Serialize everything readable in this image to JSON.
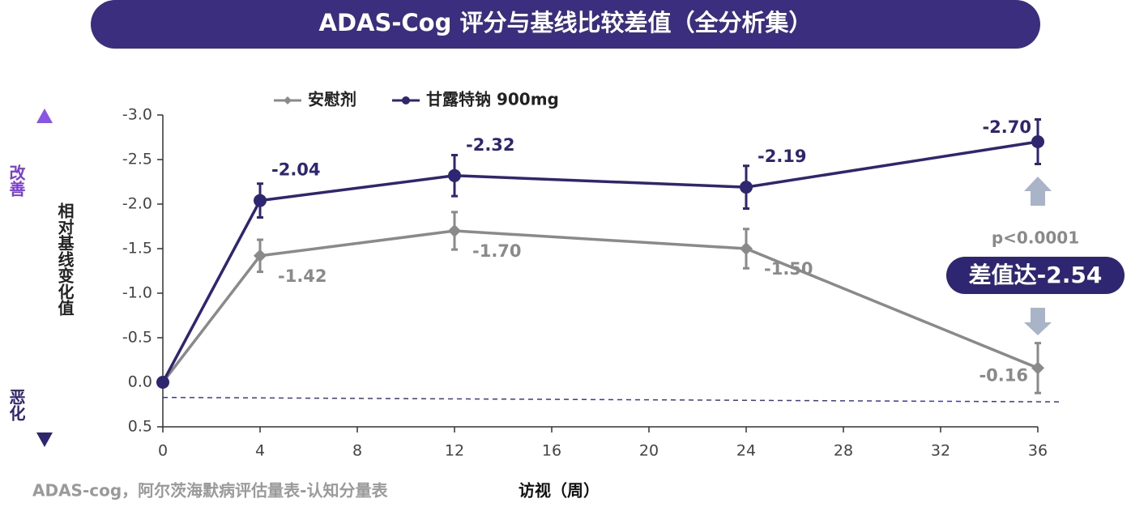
{
  "header": {
    "title": "ADAS-Cog 评分与基线比较差值（全分析集）"
  },
  "chart_data": {
    "type": "line",
    "x": [
      0,
      4,
      12,
      24,
      36
    ],
    "series": [
      {
        "name": "安慰剂",
        "color": "#8a8a8a",
        "marker": "diamond",
        "values": [
          0,
          -1.42,
          -1.7,
          -1.5,
          -0.16
        ],
        "value_labels": [
          null,
          "-1.42",
          "-1.70",
          "-1.50",
          "-0.16"
        ],
        "errors": [
          null,
          0.18,
          0.21,
          0.22,
          0.28
        ]
      },
      {
        "name": "甘露特钠 900mg",
        "color": "#2e2670",
        "marker": "circle",
        "values": [
          0,
          -2.04,
          -2.32,
          -2.19,
          -2.7
        ],
        "value_labels": [
          null,
          "-2.04",
          "-2.32",
          "-2.19",
          "-2.70"
        ],
        "errors": [
          null,
          0.19,
          0.23,
          0.24,
          0.25
        ]
      }
    ],
    "xlim": [
      0,
      36
    ],
    "xticks": [
      0,
      4,
      8,
      12,
      16,
      20,
      24,
      28,
      32,
      36
    ],
    "ylim": [
      0.5,
      -3
    ],
    "yticks": [
      {
        "value": -3,
        "label": "-3.0"
      },
      {
        "value": -2.5,
        "label": "-2.5"
      },
      {
        "value": -2,
        "label": "-2.0"
      },
      {
        "value": -1.5,
        "label": "-1.5"
      },
      {
        "value": -1,
        "label": "-1.0"
      },
      {
        "value": -0.5,
        "label": "-0.5"
      },
      {
        "value": 0,
        "label": "0.0"
      },
      0.5
    ],
    "reference_line": [
      0.17,
      0.22
    ],
    "x_label": "访视（周）",
    "y_label": "相对基线变化值",
    "y_top_label": "改善",
    "y_bottom_label": "恶化",
    "annotations": {
      "p_value": "p<0.0001",
      "difference": "差值达-2.54"
    },
    "footnote": "ADAS-cog，阿尔茨海默病评估量表-认知分量表"
  }
}
